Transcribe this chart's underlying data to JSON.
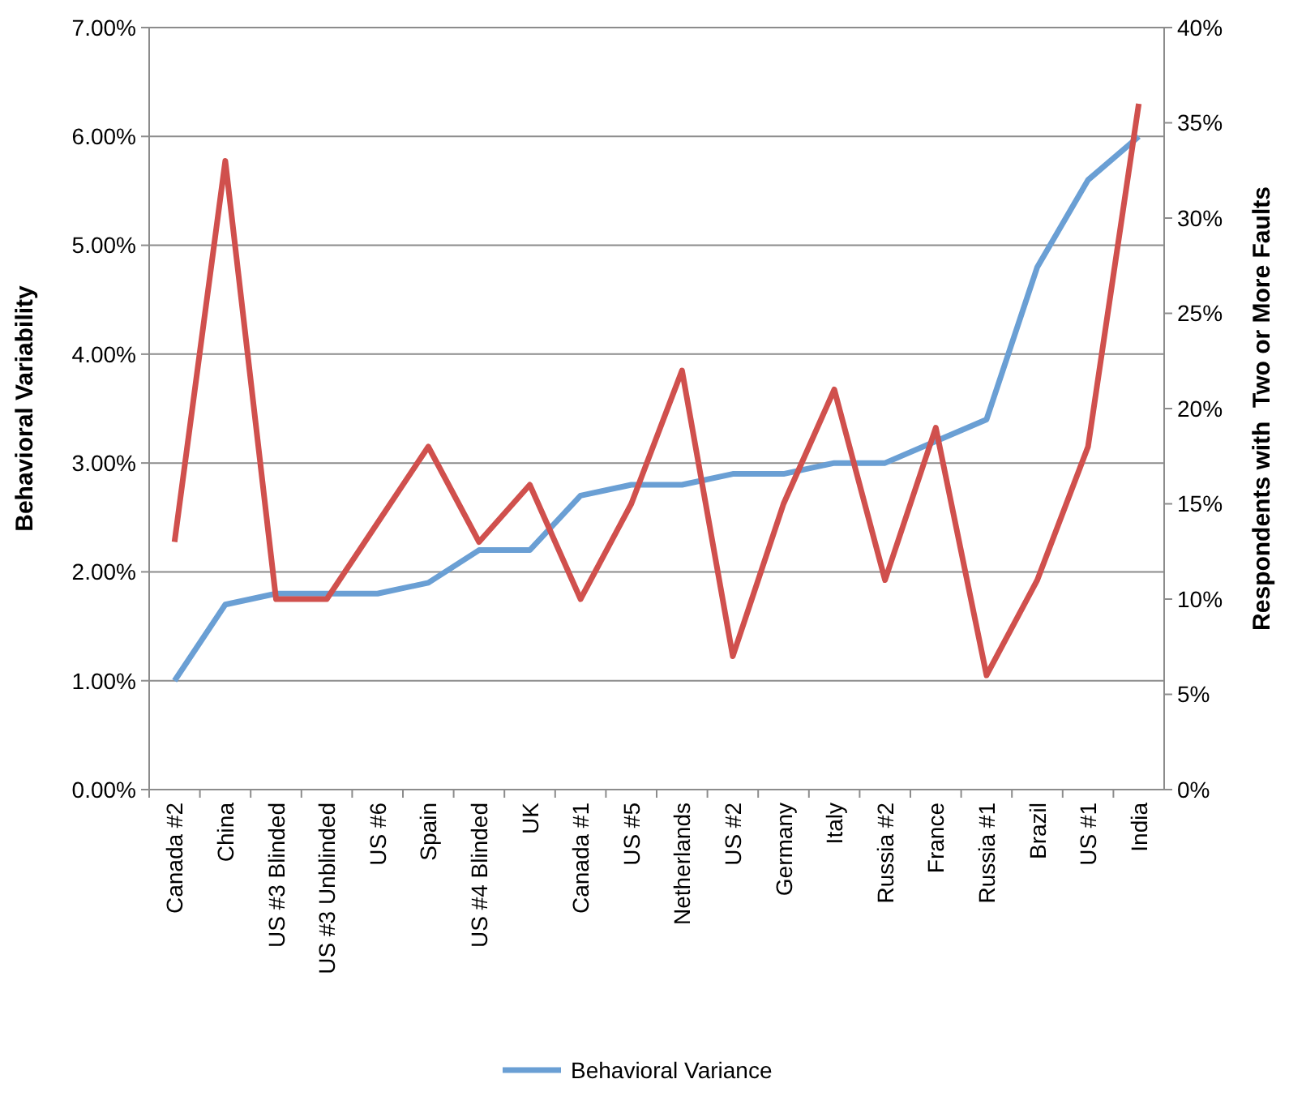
{
  "chart_data": {
    "type": "line",
    "ylabel": "Behavioral Variability",
    "y2label": "Respondents with  Two or More Faults",
    "categories": [
      "Canada #2",
      "China",
      "US #3 Blinded",
      "US #3 Unblinded",
      "US #6",
      "Spain",
      "US #4 Blinded",
      "UK",
      "Canada #1",
      "US #5",
      "Netherlands",
      "US #2",
      "Germany",
      "Italy",
      "Russia #2",
      "France",
      "Russia #1",
      "Brazil",
      "US #1",
      "India"
    ],
    "series": [
      {
        "name": "Behavioral Variance",
        "color": "#6a9fd4",
        "values": [
          1.0,
          1.7,
          1.8,
          1.8,
          1.8,
          1.9,
          2.2,
          2.2,
          2.7,
          2.8,
          2.8,
          2.9,
          2.9,
          3.0,
          3.0,
          3.2,
          3.4,
          4.8,
          5.6,
          6.0
        ]
      },
      {
        "color": "#d0504d",
        "axis": "y2",
        "values": [
          13,
          33,
          10,
          10,
          14,
          18,
          13,
          16,
          10,
          15,
          22,
          7,
          15,
          21,
          11,
          19,
          6,
          11,
          18,
          36
        ]
      }
    ],
    "ylim": [
      0,
      7
    ],
    "yticks": [
      {
        "value": 0,
        "label": "0.00%"
      },
      {
        "value": 1,
        "label": "1.00%"
      },
      {
        "value": 2,
        "label": "2.00%"
      },
      {
        "value": 3,
        "label": "3.00%"
      },
      {
        "value": 4,
        "label": "4.00%"
      },
      {
        "value": 5,
        "label": "5.00%"
      },
      {
        "value": 6,
        "label": "6.00%"
      },
      {
        "value": 7,
        "label": "7.00%"
      }
    ],
    "y2lim": [
      0,
      40
    ],
    "y2ticks": [
      {
        "value": 0,
        "label": "0%"
      },
      {
        "value": 5,
        "label": "5%"
      },
      {
        "value": 10,
        "label": "10%"
      },
      {
        "value": 15,
        "label": "15%"
      },
      {
        "value": 20,
        "label": "20%"
      },
      {
        "value": 25,
        "label": "25%"
      },
      {
        "value": 30,
        "label": "30%"
      },
      {
        "value": 35,
        "label": "35%"
      },
      {
        "value": 40,
        "label": "40%"
      }
    ],
    "grid": "y",
    "legend": "bottom",
    "marker": "none",
    "line_style": "solid"
  }
}
